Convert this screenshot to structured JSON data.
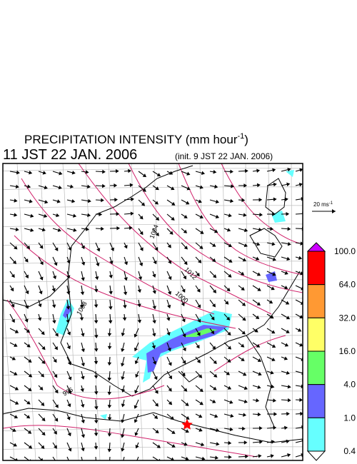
{
  "header": {
    "title": {
      "text": "PRECIPITATION INTENSITY (mm hour",
      "superscript": "-1",
      "suffix": ")"
    },
    "valid_time": "11 JST 22 JAN. 2006",
    "init_time": "(init. 9 JST 22 JAN. 2006)"
  },
  "wind_scale": {
    "text": "20 ms",
    "superscript": "-1"
  },
  "legend": {
    "labels": [
      "100.0",
      "64.0",
      "32.0",
      "16.0",
      "4.0",
      "1.0",
      "0.4"
    ],
    "colors": [
      "#cc00ff",
      "#ff0000",
      "#ff9933",
      "#ffff66",
      "#66ff66",
      "#6666ff",
      "#66ffff",
      "#ffffff"
    ]
  },
  "map": {
    "isobar_labels": [
      "1008",
      "1004",
      "1000",
      "996",
      "1012"
    ]
  }
}
